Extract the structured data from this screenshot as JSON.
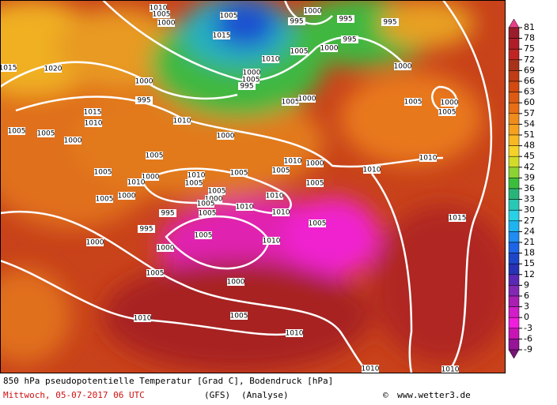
{
  "map": {
    "isobar_labels": [
      1010,
      1005,
      1000,
      1005,
      1015,
      1010,
      1000,
      995,
      995,
      1000,
      995,
      1005,
      995,
      1000,
      1005,
      995,
      1020,
      1015,
      1000,
      995,
      1015,
      1010,
      1005,
      1005,
      1000,
      1010,
      1000,
      1005,
      1000,
      1005,
      1000,
      1005,
      1000,
      1005,
      1005,
      1005,
      1000,
      1010,
      1000,
      1005,
      1005,
      1005,
      1010,
      1000,
      1005,
      1010,
      1010,
      1010,
      1005,
      1000,
      995,
      1005,
      1005,
      1010,
      1010,
      1010,
      995,
      1005,
      1010,
      1005,
      1015,
      1000,
      1000,
      1005,
      1000,
      1005,
      1010,
      1010,
      1010,
      1010
    ],
    "colorbar": {
      "ticks": [
        81,
        78,
        75,
        72,
        69,
        66,
        63,
        60,
        57,
        54,
        51,
        48,
        45,
        42,
        39,
        36,
        33,
        30,
        27,
        24,
        21,
        18,
        15,
        12,
        9,
        6,
        3,
        0,
        -3,
        -6,
        -9
      ],
      "colors": [
        "#9b1c2c",
        "#af1e28",
        "#c02424",
        "#a83218",
        "#c03c14",
        "#d24a10",
        "#dc5a14",
        "#e66e14",
        "#f08c1c",
        "#f5a01e",
        "#f7b823",
        "#f5d228",
        "#d2dc28",
        "#8cd232",
        "#3cbe3c",
        "#28b478",
        "#28c8b4",
        "#28d2e6",
        "#1eb4f0",
        "#1e8cf0",
        "#1e64e6",
        "#1e46c8",
        "#2832b4",
        "#5a28b4",
        "#8228b4",
        "#aa1eb4",
        "#d21ec8",
        "#f01edc",
        "#c814b4",
        "#961496"
      ]
    },
    "footer": {
      "title": "850 hPa pseudopotentielle Temperatur [Grad C], Bodendruck [hPa]",
      "date": "Mittwoch, 05-07-2017  06 UTC",
      "model": "(GFS)",
      "run": "(Analyse)",
      "copyright": "©",
      "site": "www.wetter3.de"
    }
  }
}
